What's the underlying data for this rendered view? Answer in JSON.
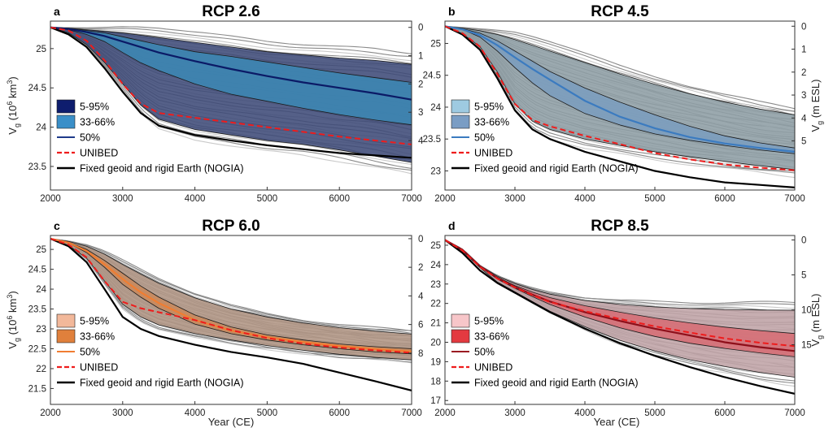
{
  "figure": {
    "xlabel": "Year (CE)",
    "ylabel_left": "V",
    "ylabel_left_sub": "g",
    "ylabel_left_unit": " (10",
    "ylabel_left_exp": "6",
    "ylabel_left_unit2": " km",
    "ylabel_left_exp2": "3",
    "ylabel_left_close": ")",
    "ylabel_right": "V",
    "ylabel_right_sub": "g",
    "ylabel_right_unit": " (m ESL)"
  },
  "chart_data": [
    {
      "panel": "a",
      "title": "RCP 2.6",
      "type": "line",
      "xlim": [
        2000,
        7000
      ],
      "ylim": [
        23.2,
        25.35
      ],
      "yticks": [
        23.5,
        24,
        24.5,
        25
      ],
      "yticklabels": [
        "23.5",
        "24",
        "24.5",
        "25"
      ],
      "right_ticks": [
        0,
        1,
        2,
        3,
        4
      ],
      "right_per_unit": 0.36,
      "show_left_ylabel": true,
      "show_right_ylabel": false,
      "legend_position": "lower-left",
      "colors": {
        "band_5_95": "#3d4a78",
        "band_33_66": "#3d86b3",
        "median": "#0b1a66",
        "legend_5_95": "#0e1d6e",
        "legend_33_66": "#3a8fc8",
        "legend_median": "#1e3a8a"
      },
      "x": [
        2000,
        2250,
        2500,
        2750,
        3000,
        3250,
        3500,
        4000,
        4500,
        5000,
        5500,
        6000,
        6500,
        7000
      ],
      "p5": [
        25.27,
        25.2,
        25.05,
        24.82,
        24.55,
        24.28,
        24.1,
        23.97,
        23.9,
        23.83,
        23.78,
        23.71,
        23.63,
        23.55
      ],
      "p95": [
        25.27,
        25.26,
        25.24,
        25.22,
        25.2,
        25.17,
        25.14,
        25.08,
        25.02,
        24.96,
        24.92,
        24.88,
        24.85,
        24.8
      ],
      "p33": [
        25.27,
        25.24,
        25.18,
        25.09,
        24.95,
        24.82,
        24.72,
        24.55,
        24.42,
        24.33,
        24.24,
        24.16,
        24.09,
        24.03
      ],
      "p66": [
        25.27,
        25.26,
        25.23,
        25.2,
        25.15,
        25.1,
        25.05,
        24.96,
        24.9,
        24.83,
        24.76,
        24.69,
        24.63,
        24.57
      ],
      "median": [
        25.27,
        25.25,
        25.21,
        25.16,
        25.09,
        25.02,
        24.95,
        24.84,
        24.74,
        24.65,
        24.57,
        24.5,
        24.43,
        24.35
      ],
      "unibed": [
        25.27,
        25.23,
        25.1,
        24.85,
        24.55,
        24.3,
        24.18,
        24.12,
        24.06,
        24.0,
        23.94,
        23.88,
        23.83,
        23.78
      ],
      "nogia": [
        25.27,
        25.18,
        25.02,
        24.75,
        24.45,
        24.18,
        24.02,
        23.9,
        23.83,
        23.77,
        23.72,
        23.67,
        23.64,
        23.61
      ],
      "legend": [
        "5-95%",
        "33-66%",
        "50%",
        "UNIBED",
        "Fixed geoid and rigid Earth (NOGIA)"
      ]
    },
    {
      "panel": "b",
      "title": "RCP 4.5",
      "type": "line",
      "xlim": [
        2000,
        7000
      ],
      "ylim": [
        22.7,
        25.35
      ],
      "yticks": [
        23,
        23.5,
        24,
        24.5,
        25
      ],
      "yticklabels": [
        "23",
        "23.5",
        "24",
        "24.5",
        "25"
      ],
      "right_ticks": [
        0,
        1,
        2,
        3,
        4,
        5
      ],
      "right_per_unit": 0.36,
      "show_left_ylabel": false,
      "show_right_ylabel": true,
      "legend_position": "lower-left",
      "colors": {
        "band_5_95": "#8d9da4",
        "band_33_66": "#7c9dbe",
        "median": "#3b7bc0",
        "legend_5_95": "#9ecae1",
        "legend_33_66": "#7a9dc4",
        "legend_median": "#3b7bc0"
      },
      "x": [
        2000,
        2250,
        2500,
        2750,
        3000,
        3250,
        3500,
        4000,
        4500,
        5000,
        5500,
        6000,
        6500,
        7000
      ],
      "p5": [
        25.27,
        25.15,
        24.95,
        24.55,
        24.05,
        23.78,
        23.65,
        23.5,
        23.4,
        23.3,
        23.22,
        23.15,
        23.08,
        23.02
      ],
      "p95": [
        25.27,
        25.24,
        25.2,
        25.14,
        25.06,
        24.97,
        24.88,
        24.7,
        24.52,
        24.36,
        24.21,
        24.08,
        23.97,
        23.88
      ],
      "p33": [
        25.27,
        25.22,
        25.1,
        24.88,
        24.62,
        24.38,
        24.18,
        23.9,
        23.72,
        23.58,
        23.48,
        23.4,
        23.33,
        23.27
      ],
      "p66": [
        25.27,
        25.23,
        25.16,
        25.04,
        24.88,
        24.72,
        24.56,
        24.3,
        24.08,
        23.88,
        23.7,
        23.55,
        23.44,
        23.36
      ],
      "median": [
        25.27,
        25.22,
        25.13,
        24.97,
        24.78,
        24.6,
        24.43,
        24.1,
        23.85,
        23.67,
        23.53,
        23.43,
        23.36,
        23.3
      ],
      "unibed": [
        25.27,
        25.16,
        24.95,
        24.52,
        24.05,
        23.8,
        23.7,
        23.55,
        23.42,
        23.28,
        23.18,
        23.1,
        23.05,
        23.01
      ],
      "nogia": [
        25.27,
        25.14,
        24.9,
        24.45,
        23.95,
        23.65,
        23.5,
        23.3,
        23.15,
        23.0,
        22.9,
        22.82,
        22.78,
        22.74
      ],
      "legend": [
        "5-95%",
        "33-66%",
        "50%",
        "UNIBED",
        "Fixed geoid and rigid Earth (NOGIA)"
      ]
    },
    {
      "panel": "c",
      "title": "RCP 6.0",
      "type": "line",
      "xlim": [
        2000,
        7000
      ],
      "ylim": [
        21.1,
        25.35
      ],
      "yticks": [
        21.5,
        22,
        22.5,
        23,
        23.5,
        24,
        24.5,
        25
      ],
      "yticklabels": [
        "21.5",
        "22",
        "22.5",
        "23",
        "23.5",
        "24",
        "24.5",
        "25"
      ],
      "right_ticks": [
        0,
        2,
        4,
        6,
        8
      ],
      "right_per_unit": 0.36,
      "show_left_ylabel": true,
      "show_right_ylabel": false,
      "legend_position": "lower-left",
      "colors": {
        "band_5_95": "#b09584",
        "band_33_66": "#c88a5e",
        "median": "#f07d32",
        "legend_5_95": "#f2b89a",
        "legend_33_66": "#e0803c",
        "legend_median": "#f07d32"
      },
      "x": [
        2000,
        2250,
        2500,
        2750,
        3000,
        3250,
        3500,
        4000,
        4500,
        5000,
        5500,
        6000,
        6500,
        7000
      ],
      "p5": [
        25.27,
        25.1,
        24.78,
        24.2,
        23.62,
        23.3,
        23.1,
        22.88,
        22.72,
        22.58,
        22.46,
        22.36,
        22.28,
        22.22
      ],
      "p95": [
        25.27,
        25.2,
        25.08,
        24.88,
        24.62,
        24.38,
        24.15,
        23.78,
        23.5,
        23.3,
        23.15,
        23.03,
        22.94,
        22.87
      ],
      "p33": [
        25.27,
        25.16,
        24.92,
        24.55,
        24.12,
        23.8,
        23.52,
        23.12,
        22.88,
        22.72,
        22.6,
        22.5,
        22.42,
        22.37
      ],
      "p66": [
        25.27,
        25.18,
        25.0,
        24.72,
        24.4,
        24.08,
        23.8,
        23.35,
        23.05,
        22.85,
        22.72,
        22.62,
        22.55,
        22.5
      ],
      "median": [
        25.27,
        25.17,
        24.96,
        24.62,
        24.25,
        23.92,
        23.65,
        23.22,
        22.96,
        22.79,
        22.67,
        22.57,
        22.49,
        22.43
      ],
      "unibed": [
        25.27,
        25.12,
        24.8,
        24.2,
        23.68,
        23.52,
        23.42,
        23.22,
        22.97,
        22.77,
        22.63,
        22.53,
        22.46,
        22.4
      ],
      "nogia": [
        25.27,
        25.08,
        24.68,
        24.0,
        23.3,
        23.0,
        22.82,
        22.6,
        22.42,
        22.28,
        22.12,
        21.9,
        21.68,
        21.45
      ],
      "legend": [
        "5-95%",
        "33-66%",
        "50%",
        "UNIBED",
        "Fixed geoid and rigid Earth (NOGIA)"
      ]
    },
    {
      "panel": "d",
      "title": "RCP 8.5",
      "type": "line",
      "xlim": [
        2000,
        7000
      ],
      "ylim": [
        16.8,
        25.5
      ],
      "yticks": [
        17,
        18,
        19,
        20,
        21,
        22,
        23,
        24,
        25
      ],
      "yticklabels": [
        "17",
        "18",
        "19",
        "20",
        "21",
        "22",
        "23",
        "24",
        "25"
      ],
      "right_ticks": [
        0,
        5,
        10,
        15
      ],
      "right_per_unit": 0.36,
      "show_left_ylabel": false,
      "show_right_ylabel": true,
      "legend_position": "lower-left",
      "colors": {
        "band_5_95": "#bfa3a6",
        "band_33_66": "#d66f77",
        "median": "#8e0f1a",
        "legend_5_95": "#f7c6c9",
        "legend_33_66": "#e33a40",
        "legend_median": "#9b1b22"
      },
      "x": [
        2000,
        2250,
        2500,
        2750,
        3000,
        3250,
        3500,
        4000,
        4500,
        5000,
        5500,
        6000,
        6500,
        7000
      ],
      "p5": [
        25.27,
        24.7,
        23.85,
        23.1,
        22.6,
        22.1,
        21.6,
        20.8,
        20.1,
        19.55,
        19.1,
        18.75,
        18.45,
        18.2
      ],
      "p95": [
        25.27,
        24.8,
        23.95,
        23.4,
        23.02,
        22.72,
        22.48,
        22.15,
        21.95,
        21.82,
        21.74,
        21.69,
        21.66,
        21.65
      ],
      "p33": [
        25.27,
        24.75,
        23.9,
        23.25,
        22.78,
        22.35,
        21.95,
        21.3,
        20.75,
        20.3,
        19.95,
        19.68,
        19.45,
        19.25
      ],
      "p66": [
        25.27,
        24.78,
        23.93,
        23.35,
        22.92,
        22.58,
        22.3,
        21.88,
        21.55,
        21.25,
        21.0,
        20.78,
        20.6,
        20.45
      ],
      "median": [
        25.27,
        24.76,
        23.92,
        23.3,
        22.85,
        22.45,
        22.1,
        21.55,
        21.1,
        20.7,
        20.35,
        20.0,
        19.75,
        19.55
      ],
      "unibed": [
        25.27,
        24.72,
        23.88,
        23.28,
        22.82,
        22.42,
        22.08,
        21.6,
        21.2,
        20.82,
        20.5,
        20.2,
        19.98,
        19.8
      ],
      "nogia": [
        25.27,
        24.6,
        23.7,
        23.05,
        22.55,
        22.05,
        21.55,
        20.7,
        19.95,
        19.3,
        18.72,
        18.2,
        17.75,
        17.35
      ],
      "legend": [
        "5-95%",
        "33-66%",
        "50%",
        "UNIBED",
        "Fixed geoid and rigid Earth (NOGIA)"
      ]
    }
  ]
}
